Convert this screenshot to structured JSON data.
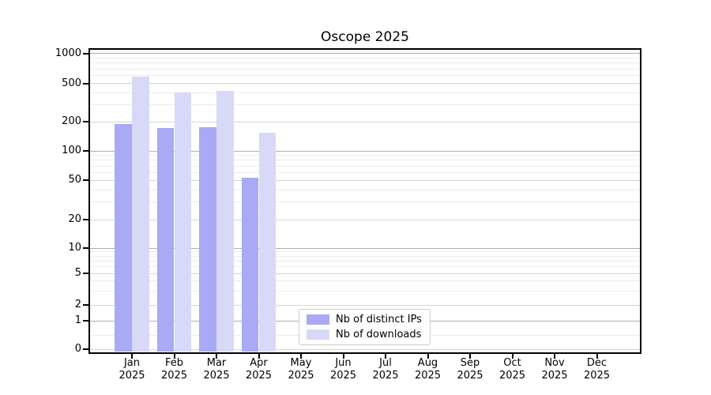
{
  "chart_data": {
    "type": "bar",
    "title": "Oscope 2025",
    "xlabel": "",
    "ylabel": "",
    "x_months": [
      "Jan",
      "Feb",
      "Mar",
      "Apr",
      "May",
      "Jun",
      "Jul",
      "Aug",
      "Sep",
      "Oct",
      "Nov",
      "Dec"
    ],
    "x_year": "2025",
    "yscale": "symlog",
    "yticks": [
      0,
      1,
      2,
      5,
      10,
      20,
      50,
      100,
      200,
      500,
      1000
    ],
    "ylim": [
      0,
      1000
    ],
    "grid": "horizontal, log minors",
    "legend_position": "lower center",
    "series": [
      {
        "name": "Nb of distinct IPs",
        "color": "#a9a9f5",
        "values": [
          190,
          172,
          176,
          53,
          null,
          null,
          null,
          null,
          null,
          null,
          null,
          null
        ]
      },
      {
        "name": "Nb of downloads",
        "color": "#d8d8f8",
        "values": [
          580,
          400,
          420,
          155,
          null,
          null,
          null,
          null,
          null,
          null,
          null,
          null
        ]
      }
    ]
  }
}
